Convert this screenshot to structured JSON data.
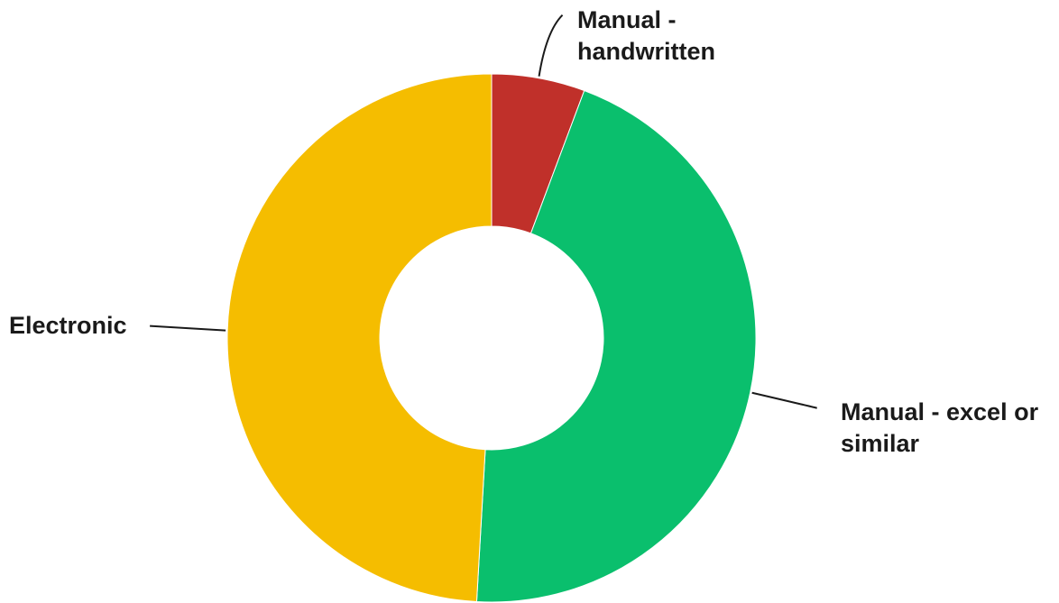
{
  "chart_data": {
    "type": "pie",
    "donut": true,
    "title": "",
    "categories": [
      "Manual - handwritten",
      "Manual - excel or similar",
      "Electronic"
    ],
    "values": [
      5.7,
      45.2,
      49.1
    ],
    "unit": "%",
    "colors": [
      "#c0302a",
      "#0abf6d",
      "#f5bd00"
    ],
    "start": "12 o'clock",
    "direction": "clockwise",
    "legend": "none",
    "labels": [
      {
        "lines": [
          "Manual -",
          "handwritten"
        ]
      },
      {
        "lines": [
          "Manual - excel or",
          "similar"
        ]
      },
      {
        "lines": [
          "Electronic"
        ]
      }
    ]
  }
}
